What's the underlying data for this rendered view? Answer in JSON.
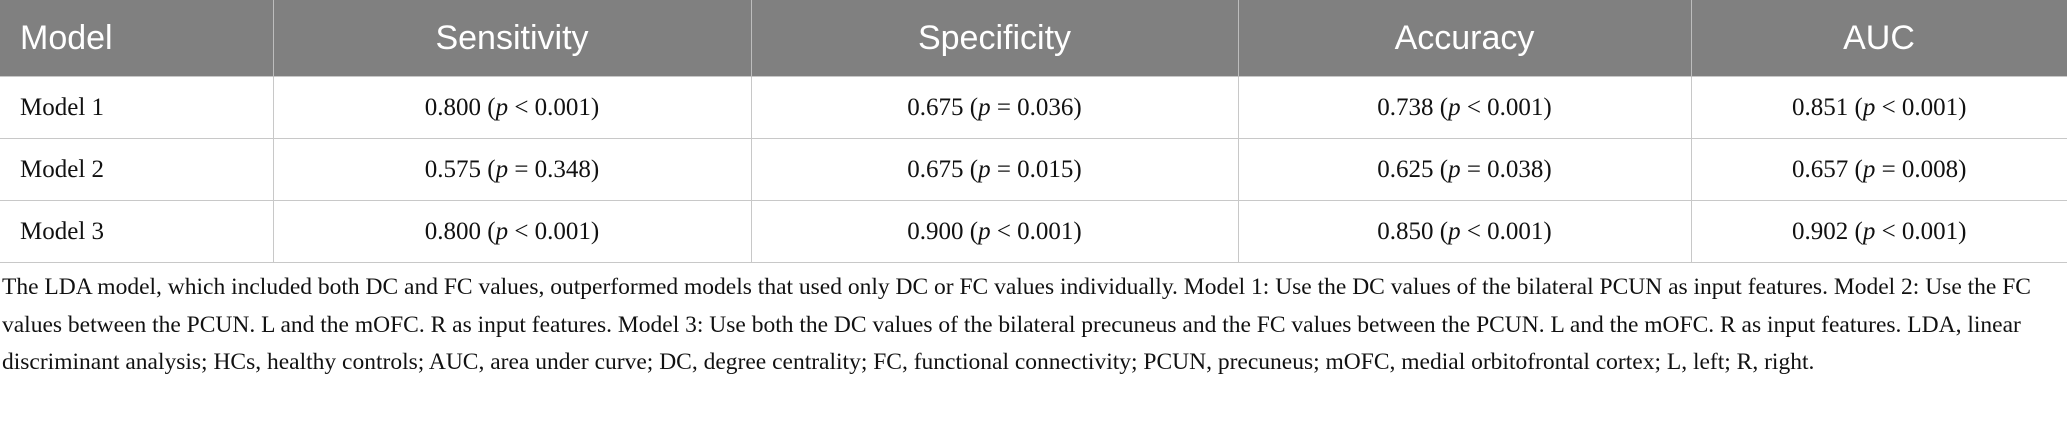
{
  "table": {
    "header": [
      "Model",
      "Sensitivity",
      "Specificity",
      "Accuracy",
      "AUC"
    ],
    "rows": [
      [
        "Model 1",
        [
          "0.800 (",
          "p",
          " < 0.001)"
        ],
        [
          "0.675 (",
          "p",
          " = 0.036)"
        ],
        [
          "0.738 (",
          "p",
          " < 0.001)"
        ],
        [
          "0.851 (",
          "p",
          " < 0.001)"
        ]
      ],
      [
        "Model 2",
        [
          "0.575 (",
          "p",
          " = 0.348)"
        ],
        [
          "0.675 (",
          "p",
          " = 0.015)"
        ],
        [
          "0.625 (",
          "p",
          " = 0.038)"
        ],
        [
          "0.657 (",
          "p",
          " = 0.008)"
        ]
      ],
      [
        "Model 3",
        [
          "0.800 (",
          "p",
          " < 0.001)"
        ],
        [
          "0.900 (",
          "p",
          " < 0.001)"
        ],
        [
          "0.850 (",
          "p",
          " < 0.001)"
        ],
        [
          "0.902 (",
          "p",
          " < 0.001)"
        ]
      ]
    ]
  },
  "footnote": "The LDA model, which included both DC and FC values, outperformed models that used only DC or FC values individually. Model 1: Use the DC values of the bilateral PCUN as input features. Model 2: Use the FC values between the PCUN. L and the mOFC. R as input features. Model 3: Use both the DC values of the bilateral precuneus and the FC values between the PCUN. L and the mOFC. R as input features. LDA, linear discriminant analysis; HCs, healthy controls; AUC, area under curve; DC, degree centrality; FC, functional connectivity; PCUN, precuneus; mOFC, medial orbitofrontal cortex; L, left; R, right."
}
